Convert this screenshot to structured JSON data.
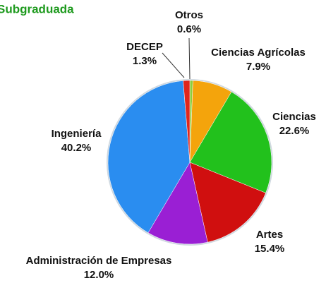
{
  "chart_data": {
    "type": "pie",
    "title": "Subgraduada",
    "categories": [
      "Otros",
      "Ciencias Agrícolas",
      "Ciencias",
      "Artes",
      "Administración de Empresas",
      "Ingeniería",
      "DECEP"
    ],
    "values": [
      0.6,
      7.9,
      22.6,
      15.4,
      12.0,
      40.2,
      1.3
    ],
    "value_labels": [
      "0.6%",
      "7.9%",
      "22.6%",
      "15.4%",
      "12.0%",
      "40.2%",
      "1.3%"
    ],
    "colors": [
      "#8ccf3c",
      "#f4a40c",
      "#22c11c",
      "#d00f0f",
      "#9a1fd4",
      "#2a8df0",
      "#e0261c"
    ]
  }
}
